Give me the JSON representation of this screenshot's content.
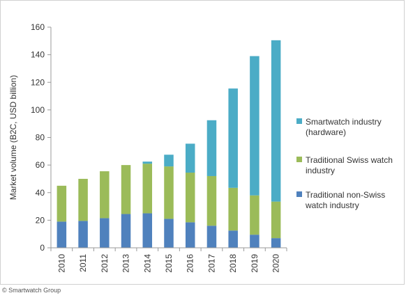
{
  "chart_data": {
    "type": "bar",
    "stacked": true,
    "ylabel": "Market volume (B2C, USD billion)",
    "xlabel": "",
    "ylim": [
      0,
      160
    ],
    "yticks": [
      0,
      20,
      40,
      60,
      80,
      100,
      120,
      140,
      160
    ],
    "grid": false,
    "legend_position": "right",
    "categories": [
      "2010",
      "2011",
      "2012",
      "2013",
      "2014",
      "2015",
      "2016",
      "2017",
      "2018",
      "2019",
      "2020"
    ],
    "series": [
      {
        "name": "Traditional non-Swiss watch industry",
        "color": "#4f81bd",
        "values": [
          19,
          19.5,
          21.5,
          24.5,
          25,
          21,
          18.5,
          16,
          12.5,
          9.5,
          7
        ]
      },
      {
        "name": "Traditional Swiss watch industry",
        "color": "#9bbb59",
        "values": [
          26,
          30.5,
          34,
          35.5,
          36,
          38,
          36,
          36,
          31,
          28.5,
          26.5
        ]
      },
      {
        "name": "Smartwatch industry (hardware)",
        "color": "#4bacc6",
        "values": [
          0,
          0,
          0,
          0,
          1.5,
          8.5,
          21,
          40.5,
          72,
          101,
          117
        ]
      }
    ],
    "legend": [
      {
        "lines": [
          "Smartwatch industry",
          "(hardware)"
        ],
        "color": "#4bacc6"
      },
      {
        "lines": [
          "Traditional Swiss watch",
          "industry"
        ],
        "color": "#9bbb59"
      },
      {
        "lines": [
          "Traditional non-Swiss",
          "watch industry"
        ],
        "color": "#4f81bd"
      }
    ]
  },
  "footer": "© Smartwatch Group"
}
